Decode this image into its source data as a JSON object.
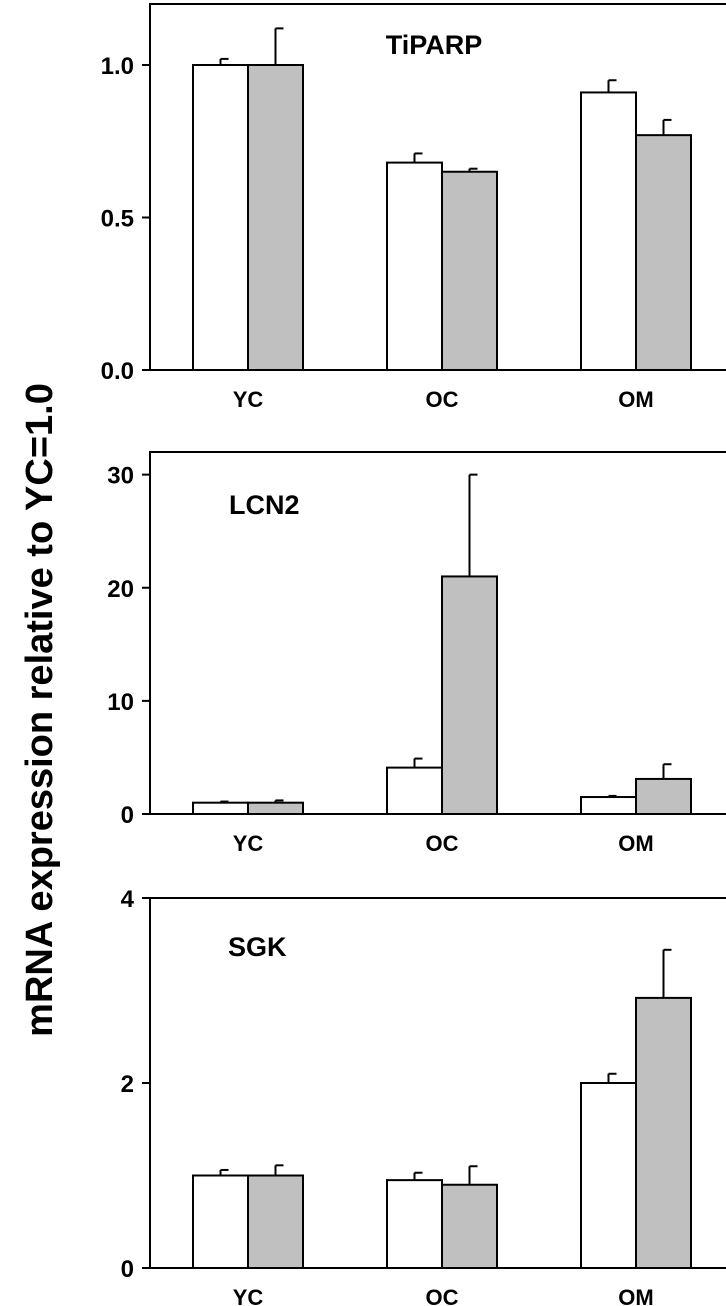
{
  "figure": {
    "ylabel": "mRNA expression relative to YC=1.0"
  },
  "chart_data": [
    {
      "type": "bar",
      "title": "TiPARP",
      "categories": [
        "YC",
        "OC",
        "OM"
      ],
      "ylim": [
        0,
        1.2
      ],
      "yticks": [
        "0.0",
        "0.5",
        "1.0"
      ],
      "ytick_values": [
        0,
        0.5,
        1.0
      ],
      "series": [
        {
          "values": [
            1.0,
            0.68,
            0.91
          ],
          "errors": [
            0.02,
            0.03,
            0.04
          ],
          "color": "#ffffff"
        },
        {
          "values": [
            1.0,
            0.65,
            0.77
          ],
          "errors": [
            0.12,
            0.01,
            0.05
          ],
          "color": "#c0c0c0"
        }
      ]
    },
    {
      "type": "bar",
      "title": "LCN2",
      "categories": [
        "YC",
        "OC",
        "OM"
      ],
      "ylim": [
        0,
        32
      ],
      "yticks": [
        "0",
        "10",
        "20",
        "30"
      ],
      "ytick_values": [
        0,
        10,
        20,
        30
      ],
      "series": [
        {
          "values": [
            1.0,
            4.1,
            1.5
          ],
          "errors": [
            0.1,
            0.8,
            0.1
          ],
          "color": "#ffffff"
        },
        {
          "values": [
            1.0,
            21.0,
            3.1
          ],
          "errors": [
            0.2,
            9.0,
            1.3
          ],
          "color": "#c0c0c0"
        }
      ]
    },
    {
      "type": "bar",
      "title": "SGK",
      "categories": [
        "YC",
        "OC",
        "OM"
      ],
      "ylim": [
        0,
        4
      ],
      "yticks": [
        "0",
        "2",
        "4"
      ],
      "ytick_values": [
        0,
        2,
        4
      ],
      "series": [
        {
          "values": [
            1.0,
            0.95,
            2.0
          ],
          "errors": [
            0.06,
            0.08,
            0.1
          ],
          "color": "#ffffff"
        },
        {
          "values": [
            1.0,
            0.9,
            2.92
          ],
          "errors": [
            0.11,
            0.2,
            0.52
          ],
          "color": "#c0c0c0"
        }
      ]
    }
  ]
}
